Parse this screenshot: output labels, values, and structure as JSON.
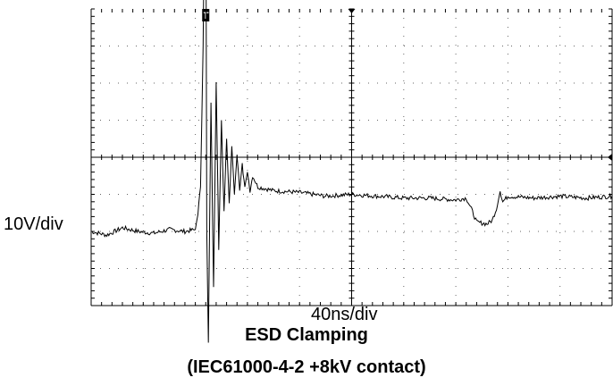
{
  "chart_data": {
    "type": "line",
    "title": "ESD Clamping",
    "subtitle": "(IEC61000-4-2 +8kV contact)",
    "xlabel": "40ns/div",
    "ylabel": "10V/div",
    "grid": true,
    "divisions": {
      "x": 10,
      "y": 8
    },
    "trigger_marker": "T",
    "series": [
      {
        "points": [
          [
            0.0,
            -2.0
          ],
          [
            0.3,
            -2.1
          ],
          [
            0.6,
            -1.9
          ],
          [
            0.9,
            -2.0
          ],
          [
            1.2,
            -2.05
          ],
          [
            1.5,
            -1.95
          ],
          [
            1.8,
            -2.0
          ],
          [
            2.0,
            -1.95
          ],
          [
            2.05,
            -1.5
          ],
          [
            2.1,
            -0.8
          ],
          [
            2.15,
            3.0
          ],
          [
            2.18,
            7.5
          ],
          [
            2.2,
            8.0
          ],
          [
            2.22,
            -2.0
          ],
          [
            2.25,
            -5.0
          ],
          [
            2.3,
            1.5
          ],
          [
            2.35,
            -3.5
          ],
          [
            2.4,
            2.0
          ],
          [
            2.45,
            -2.5
          ],
          [
            2.5,
            1.0
          ],
          [
            2.55,
            -1.5
          ],
          [
            2.6,
            0.5
          ],
          [
            2.65,
            -1.2
          ],
          [
            2.7,
            0.3
          ],
          [
            2.75,
            -1.0
          ],
          [
            2.8,
            0.1
          ],
          [
            2.85,
            -0.9
          ],
          [
            2.9,
            -0.2
          ],
          [
            2.95,
            -0.8
          ],
          [
            3.0,
            -0.4
          ],
          [
            3.05,
            -0.9
          ],
          [
            3.1,
            -0.5
          ],
          [
            3.2,
            -0.8
          ],
          [
            3.5,
            -0.9
          ],
          [
            4.0,
            -0.95
          ],
          [
            4.5,
            -1.05
          ],
          [
            5.0,
            -1.0
          ],
          [
            5.5,
            -1.05
          ],
          [
            6.0,
            -1.1
          ],
          [
            6.5,
            -1.1
          ],
          [
            7.0,
            -1.15
          ],
          [
            7.2,
            -1.1
          ],
          [
            7.3,
            -1.4
          ],
          [
            7.4,
            -1.75
          ],
          [
            7.6,
            -1.8
          ],
          [
            7.7,
            -1.7
          ],
          [
            7.8,
            -1.3
          ],
          [
            7.85,
            -0.9
          ],
          [
            7.9,
            -1.2
          ],
          [
            8.0,
            -1.05
          ],
          [
            8.5,
            -1.1
          ],
          [
            9.0,
            -1.05
          ],
          [
            9.5,
            -1.1
          ],
          [
            10.0,
            -1.05
          ]
        ]
      }
    ]
  }
}
